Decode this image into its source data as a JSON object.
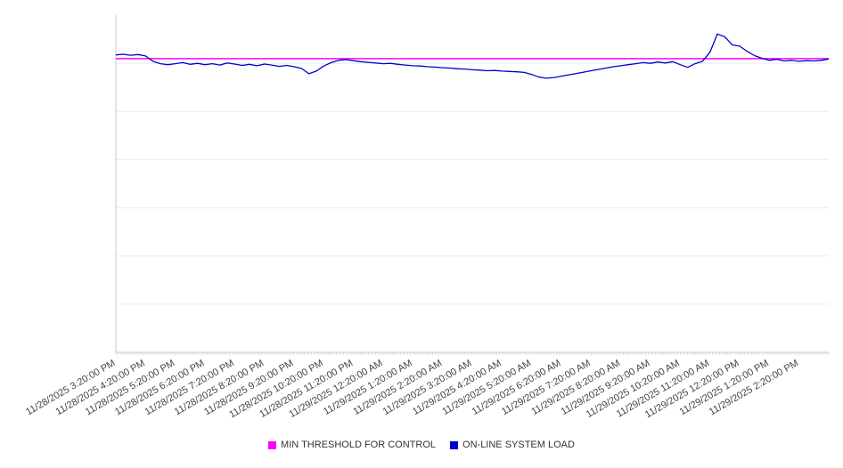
{
  "chart_data": {
    "type": "line",
    "x_labels": [
      "11/28/2025 3:20:00 PM",
      "11/28/2025 4:20:00 PM",
      "11/28/2025 5:20:00 PM",
      "11/28/2025 6:20:00 PM",
      "11/28/2025 7:20:00 PM",
      "11/28/2025 8:20:00 PM",
      "11/28/2025 9:20:00 PM",
      "11/28/2025 10:20:00 PM",
      "11/28/2025 11:20:00 PM",
      "11/29/2025 12:20:00 AM",
      "11/29/2025 1:20:00 AM",
      "11/29/2025 2:20:00 AM",
      "11/29/2025 3:20:00 AM",
      "11/29/2025 4:20:00 AM",
      "11/29/2025 5:20:00 AM",
      "11/29/2025 6:20:00 AM",
      "11/29/2025 7:20:00 AM",
      "11/29/2025 8:20:00 AM",
      "11/29/2025 9:20:00 AM",
      "11/29/2025 10:20:00 AM",
      "11/29/2025 11:20:00 AM",
      "11/29/2025 12:20:00 PM",
      "11/29/2025 1:20:00 PM",
      "11/29/2025 2:20:00 PM"
    ],
    "series": [
      {
        "name": "MIN THRESHOLD FOR CONTROL",
        "type": "threshold",
        "color": "#ff00ff",
        "value": 87.1
      },
      {
        "name": "ON-LINE SYSTEM LOAD",
        "type": "line",
        "color": "#0000cd",
        "values": [
          88.2,
          88.4,
          88.1,
          88.3,
          87.9,
          86.3,
          85.6,
          85.3,
          85.6,
          85.9,
          85.4,
          85.7,
          85.3,
          85.6,
          85.2,
          85.8,
          85.5,
          85.1,
          85.4,
          85.0,
          85.5,
          85.2,
          84.8,
          85.1,
          84.7,
          84.2,
          82.6,
          83.4,
          84.9,
          85.9,
          86.6,
          86.8,
          86.5,
          86.2,
          86.0,
          85.8,
          85.6,
          85.7,
          85.4,
          85.2,
          85.0,
          84.9,
          84.7,
          84.6,
          84.4,
          84.3,
          84.1,
          84.0,
          83.8,
          83.7,
          83.5,
          83.6,
          83.4,
          83.3,
          83.2,
          83.0,
          82.4,
          81.6,
          81.3,
          81.5,
          81.9,
          82.3,
          82.7,
          83.1,
          83.5,
          83.9,
          84.3,
          84.7,
          85.0,
          85.3,
          85.6,
          85.9,
          85.7,
          86.1,
          85.8,
          86.2,
          85.3,
          84.5,
          85.6,
          86.3,
          89.0,
          94.4,
          93.6,
          91.2,
          90.8,
          89.3,
          88.0,
          87.2,
          86.6,
          86.9,
          86.4,
          86.6,
          86.3,
          86.5,
          86.4,
          86.6,
          87.0
        ]
      }
    ],
    "ylim": [
      0,
      100
    ],
    "grid_divisions": 7,
    "y_tick_labels_visible": false,
    "legend_position": "bottom",
    "colors": {
      "gridline": "#ebebeb",
      "axis": "#c8c8c8",
      "label_text": "#444444"
    }
  }
}
